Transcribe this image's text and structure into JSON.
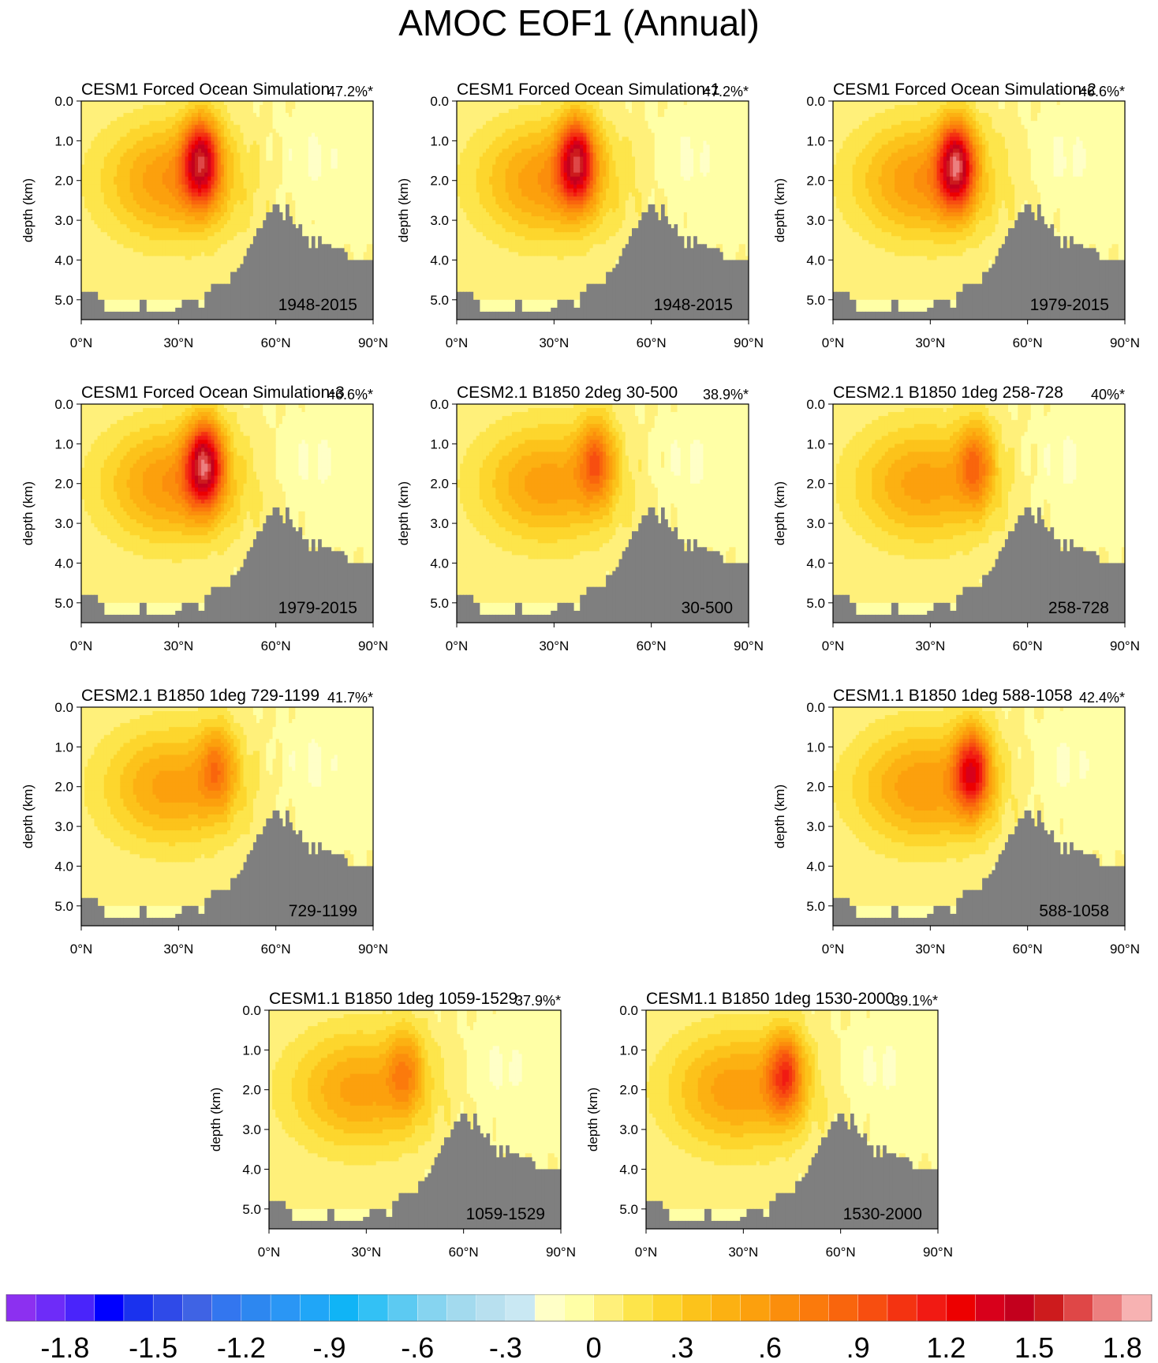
{
  "title": "AMOC EOF1 (Annual)",
  "chart_data": {
    "type": "filled-contour",
    "title": "AMOC EOF1 (Annual)",
    "xlabel": "",
    "ylabel": "depth (km)",
    "xlim": [
      0,
      90
    ],
    "ylim": [
      5.5,
      0
    ],
    "x_ticks": [
      "0°N",
      "30°N",
      "60°N",
      "90°N"
    ],
    "y_ticks": [
      "0.0",
      "1.0",
      "2.0",
      "3.0",
      "4.0",
      "5.0"
    ],
    "panels": [
      {
        "name": "CESM1 Forced Ocean Simulation",
        "variance": "47.2%*",
        "period": "1948-2015",
        "peak_lat": 37,
        "peak_depth": 1.5,
        "peak_val": 1.65
      },
      {
        "name": "CESM1 Forced Ocean Simulation-1",
        "variance": "47.2%*",
        "period": "1948-2015",
        "peak_lat": 37,
        "peak_depth": 1.5,
        "peak_val": 1.65
      },
      {
        "name": "CESM1 Forced Ocean Simulation-2",
        "variance": "46.6%*",
        "period": "1979-2015",
        "peak_lat": 38,
        "peak_depth": 1.6,
        "peak_val": 1.75
      },
      {
        "name": "CESM1 Forced Ocean Simulation-3",
        "variance": "46.6%*",
        "period": "1979-2015",
        "peak_lat": 38,
        "peak_depth": 1.5,
        "peak_val": 1.75
      },
      {
        "name": "CESM2.1 B1850 2deg 30-500",
        "variance": "38.9%*",
        "period": "30-500",
        "peak_lat": 43,
        "peak_depth": 1.4,
        "peak_val": 1.1
      },
      {
        "name": "CESM2.1 B1850 1deg 258-728",
        "variance": "40%*",
        "period": "258-728",
        "peak_lat": 44,
        "peak_depth": 1.5,
        "peak_val": 1.05
      },
      {
        "name": "CESM2.1 B1850 1deg 729-1199",
        "variance": "41.7%*",
        "period": "729-1199",
        "peak_lat": 42,
        "peak_depth": 1.5,
        "peak_val": 0.95
      },
      {
        "name": "CESM1.1 B1850 1deg 588-1058",
        "variance": "42.4%*",
        "period": "588-1058",
        "peak_lat": 43,
        "peak_depth": 1.6,
        "peak_val": 1.5
      },
      {
        "name": "CESM1.1 B1850 1deg 1059-1529",
        "variance": "37.9%*",
        "period": "1059-1529",
        "peak_lat": 42,
        "peak_depth": 1.5,
        "peak_val": 0.9
      },
      {
        "name": "CESM1.1 B1850 1deg 1530-2000",
        "variance": "39.1%*",
        "period": "1530-2000",
        "peak_lat": 43,
        "peak_depth": 1.6,
        "peak_val": 1.25
      }
    ],
    "colorbar": {
      "labels": [
        "-1.8",
        "-1.5",
        "-1.2",
        "-.9",
        "-.6",
        "-.3",
        "0",
        ".3",
        ".6",
        ".9",
        "1.2",
        "1.5",
        "1.8"
      ],
      "label_values": [
        -1.8,
        -1.5,
        -1.2,
        -0.9,
        -0.6,
        -0.3,
        0,
        0.3,
        0.6,
        0.9,
        1.2,
        1.5,
        1.8
      ],
      "boundaries_start": -2.0,
      "step": 0.1,
      "colors": [
        "#8c30f0",
        "#6e2cf8",
        "#4a24fb",
        "#0000ff",
        "#1a32ee",
        "#2f4ae8",
        "#3f63e4",
        "#3376ef",
        "#2d87f0",
        "#2a96f5",
        "#20a6f7",
        "#10b4f6",
        "#33c1f5",
        "#5ccaf2",
        "#86d4f0",
        "#a3daee",
        "#b8e0ef",
        "#c9e8f3",
        "#ffffc7",
        "#ffffa6",
        "#fff07a",
        "#fde54b",
        "#fdd62d",
        "#fcc31b",
        "#fcb112",
        "#fca00d",
        "#fb8e0c",
        "#fb7a0c",
        "#f9650d",
        "#f74e10",
        "#f43311",
        "#f11a13",
        "#ed0000",
        "#d8001b",
        "#c3001d",
        "#cd1b1d",
        "#df4747",
        "#ec7f7f",
        "#f7b2b2"
      ]
    },
    "bathymetry_depths_km": [
      4.8,
      4.8,
      4.8,
      4.8,
      4.8,
      5.0,
      5.0,
      5.3,
      5.3,
      5.3,
      5.3,
      5.3,
      5.3,
      5.3,
      5.3,
      5.3,
      5.3,
      5.3,
      5.0,
      5.0,
      5.3,
      5.3,
      5.3,
      5.3,
      5.3,
      5.3,
      5.3,
      5.3,
      5.3,
      5.2,
      5.2,
      5.0,
      5.0,
      5.0,
      5.0,
      5.0,
      5.2,
      5.2,
      4.8,
      4.8,
      4.6,
      4.6,
      4.6,
      4.6,
      4.6,
      4.6,
      4.3,
      4.3,
      4.2,
      4.1,
      3.9,
      3.7,
      3.6,
      3.4,
      3.2,
      3.2,
      3.0,
      2.8,
      2.8,
      2.6,
      2.6,
      2.8,
      3.0,
      2.6,
      2.9,
      3.1,
      3.2,
      3.1,
      3.4,
      3.4,
      3.7,
      3.4,
      3.7,
      3.4,
      3.6,
      3.6,
      3.6,
      3.7,
      3.7,
      3.7,
      3.7,
      3.8,
      4.0,
      4.0,
      4.0,
      4.0,
      4.0,
      4.0,
      4.0,
      4.0
    ]
  }
}
